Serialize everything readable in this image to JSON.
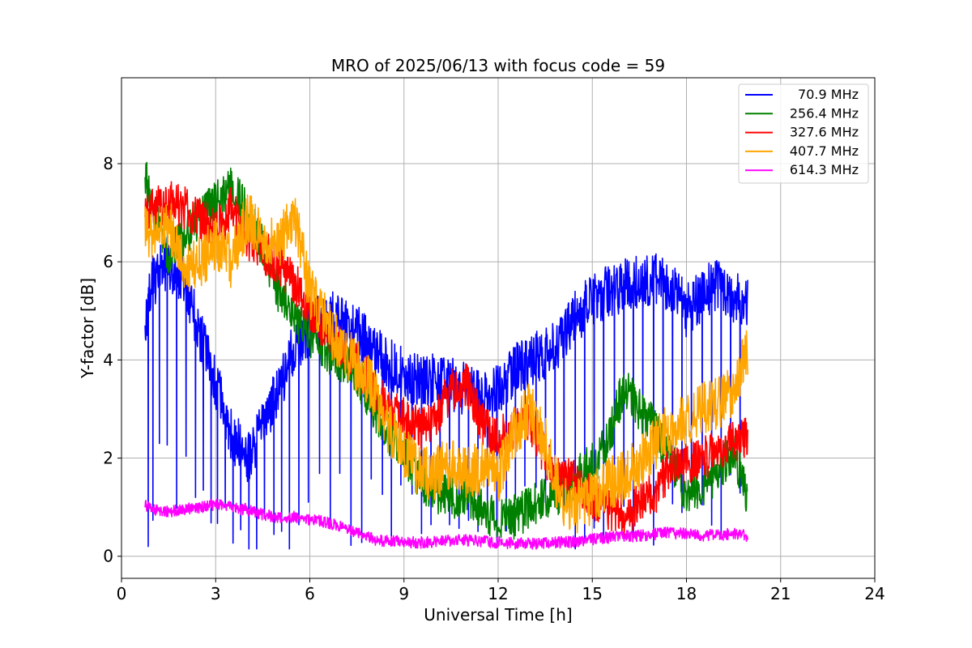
{
  "chart_data": {
    "type": "line",
    "title": "MRO of 2025/06/13 with focus code = 59",
    "xlabel": "Universal Time [h]",
    "ylabel": "Y-factor [dB]",
    "xlim": [
      0,
      24
    ],
    "ylim": [
      -0.45,
      9.75
    ],
    "xticks": [
      0,
      3,
      6,
      9,
      12,
      15,
      18,
      21,
      24
    ],
    "yticks": [
      0,
      2,
      4,
      6,
      8
    ],
    "grid": true,
    "legend_position": "top-right",
    "series": [
      {
        "name": "70.9 MHz",
        "color": "#0000ff",
        "x": [
          0.75,
          1.0,
          1.5,
          2.0,
          2.5,
          3.0,
          3.5,
          4.0,
          4.5,
          5.0,
          5.5,
          6.0,
          6.5,
          7.0,
          7.5,
          8.0,
          8.5,
          9.0,
          9.5,
          10.0,
          10.5,
          11.0,
          11.5,
          12.0,
          12.5,
          13.0,
          13.5,
          14.0,
          14.5,
          15.0,
          15.5,
          16.0,
          16.5,
          17.0,
          17.5,
          18.0,
          18.5,
          19.0,
          19.5,
          19.95
        ],
        "y": [
          4.8,
          5.6,
          6.0,
          5.6,
          4.5,
          3.5,
          2.5,
          2.0,
          2.6,
          3.4,
          4.3,
          4.6,
          4.9,
          4.8,
          4.6,
          4.2,
          3.9,
          3.7,
          3.6,
          3.6,
          3.5,
          3.4,
          3.3,
          3.4,
          3.8,
          4.0,
          4.1,
          4.4,
          4.9,
          5.2,
          5.4,
          5.5,
          5.6,
          5.7,
          5.5,
          5.0,
          5.3,
          5.6,
          5.3,
          5.1
        ],
        "dips": [
          0.85,
          1.0,
          1.2,
          1.45,
          1.75,
          2.05,
          2.35,
          2.6,
          2.85,
          3.05,
          3.3,
          3.55,
          3.8,
          4.05,
          4.3,
          4.55,
          4.85,
          5.1,
          5.35,
          5.65,
          5.95,
          6.3,
          6.65,
          6.95,
          7.3,
          7.65,
          7.95,
          8.3,
          8.6,
          8.9,
          9.25,
          9.55,
          9.85,
          10.15,
          10.45,
          10.75,
          11.05,
          11.35,
          11.65,
          11.95,
          12.25,
          12.55,
          12.85,
          13.2,
          13.5,
          13.8,
          14.1,
          14.45,
          14.75,
          15.05,
          15.35,
          15.7,
          16.0,
          16.3,
          16.6,
          16.95,
          17.25,
          17.55,
          17.85,
          18.15,
          18.5,
          18.8,
          19.1,
          19.4,
          19.7
        ]
      },
      {
        "name": "256.4 MHz",
        "color": "#008000",
        "x": [
          0.75,
          1.0,
          1.5,
          2.0,
          2.5,
          3.0,
          3.5,
          4.0,
          4.5,
          5.0,
          5.5,
          6.0,
          6.5,
          7.0,
          7.5,
          8.0,
          8.5,
          9.0,
          9.5,
          10.0,
          10.5,
          11.0,
          11.5,
          12.0,
          12.5,
          13.0,
          13.5,
          14.0,
          14.5,
          15.0,
          15.5,
          16.0,
          16.5,
          17.0,
          17.5,
          18.0,
          18.5,
          19.0,
          19.5,
          19.95
        ],
        "y": [
          7.8,
          7.1,
          6.2,
          6.5,
          6.9,
          7.2,
          7.5,
          7.0,
          6.3,
          5.4,
          4.8,
          4.5,
          4.2,
          4.0,
          3.7,
          3.1,
          2.5,
          2.1,
          1.6,
          1.3,
          1.2,
          1.3,
          1.0,
          0.7,
          0.8,
          1.0,
          1.2,
          1.3,
          1.6,
          1.9,
          2.3,
          3.5,
          3.0,
          2.6,
          2.0,
          1.3,
          1.4,
          1.7,
          2.2,
          1.2
        ]
      },
      {
        "name": "327.6 MHz",
        "color": "#ff0000",
        "x": [
          0.75,
          1.0,
          1.5,
          2.0,
          2.5,
          3.0,
          3.5,
          4.0,
          4.5,
          5.0,
          5.5,
          6.0,
          6.5,
          7.0,
          7.5,
          8.0,
          8.5,
          9.0,
          9.5,
          10.0,
          10.5,
          11.0,
          11.5,
          12.0,
          12.5,
          13.0,
          13.5,
          14.0,
          14.5,
          15.0,
          15.5,
          16.0,
          16.5,
          17.0,
          17.5,
          18.0,
          18.5,
          19.0,
          19.5,
          19.95
        ],
        "y": [
          7.0,
          7.1,
          7.2,
          7.1,
          6.9,
          6.6,
          7.1,
          6.5,
          6.2,
          6.0,
          5.6,
          5.0,
          4.6,
          4.2,
          3.9,
          3.5,
          3.0,
          2.8,
          2.6,
          2.8,
          3.4,
          3.5,
          2.7,
          2.4,
          2.6,
          2.8,
          2.0,
          1.6,
          1.5,
          1.2,
          1.0,
          0.8,
          1.1,
          1.3,
          1.8,
          1.9,
          2.0,
          2.1,
          2.3,
          2.4
        ]
      },
      {
        "name": "407.7 MHz",
        "color": "#ffa500",
        "x": [
          0.75,
          1.0,
          1.5,
          2.0,
          2.5,
          3.0,
          3.5,
          4.0,
          4.5,
          5.0,
          5.5,
          6.0,
          6.5,
          7.0,
          7.5,
          8.0,
          8.5,
          9.0,
          9.5,
          10.0,
          10.5,
          11.0,
          11.5,
          12.0,
          12.5,
          13.0,
          13.5,
          14.0,
          14.5,
          15.0,
          15.5,
          16.0,
          16.5,
          17.0,
          17.5,
          18.0,
          18.5,
          19.0,
          19.5,
          19.95
        ],
        "y": [
          6.8,
          6.4,
          6.8,
          5.9,
          6.0,
          6.4,
          6.0,
          6.9,
          6.6,
          6.3,
          7.0,
          5.4,
          4.8,
          4.2,
          3.9,
          3.4,
          2.6,
          2.1,
          1.7,
          1.7,
          1.9,
          1.7,
          1.8,
          1.6,
          2.5,
          3.0,
          2.3,
          1.2,
          1.0,
          1.2,
          1.5,
          1.6,
          1.9,
          2.3,
          2.6,
          2.8,
          3.0,
          3.1,
          3.4,
          4.2
        ]
      },
      {
        "name": "614.3 MHz",
        "color": "#ff00ff",
        "x": [
          0.75,
          1.0,
          1.5,
          2.0,
          2.5,
          3.0,
          3.5,
          4.0,
          4.5,
          5.0,
          5.5,
          6.0,
          6.5,
          7.0,
          7.5,
          8.0,
          8.5,
          9.0,
          9.5,
          10.0,
          10.5,
          11.0,
          11.5,
          12.0,
          12.5,
          13.0,
          13.5,
          14.0,
          14.5,
          15.0,
          15.5,
          16.0,
          16.5,
          17.0,
          17.5,
          18.0,
          18.5,
          19.0,
          19.5,
          19.95
        ],
        "y": [
          1.05,
          0.95,
          0.9,
          0.95,
          1.0,
          1.05,
          1.0,
          0.95,
          0.85,
          0.8,
          0.8,
          0.75,
          0.7,
          0.6,
          0.5,
          0.35,
          0.3,
          0.3,
          0.28,
          0.3,
          0.32,
          0.33,
          0.3,
          0.28,
          0.27,
          0.26,
          0.27,
          0.28,
          0.3,
          0.35,
          0.38,
          0.4,
          0.42,
          0.45,
          0.48,
          0.45,
          0.42,
          0.44,
          0.45,
          0.42
        ]
      }
    ]
  }
}
